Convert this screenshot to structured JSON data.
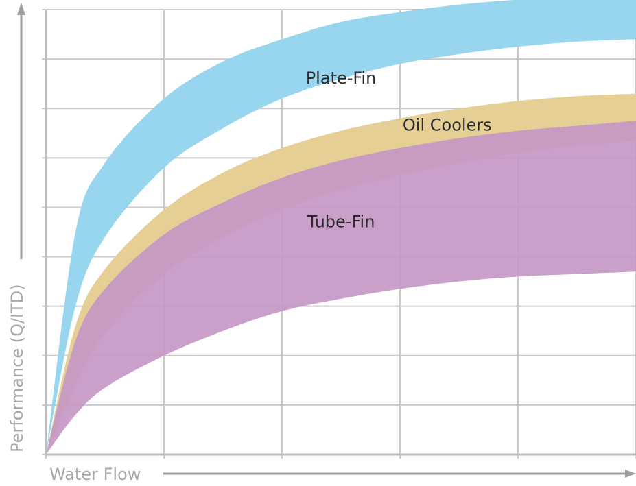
{
  "chart_data": {
    "type": "area",
    "title": "",
    "xlabel": "Water Flow",
    "ylabel": "Performance (Q/ITD)",
    "grid": true,
    "x_ticks_labeled": false,
    "y_ticks_labeled": false,
    "xlim": [
      0,
      5
    ],
    "ylim": [
      0,
      9
    ],
    "x": [
      0,
      0.25,
      0.5,
      1,
      1.5,
      2,
      2.5,
      3,
      3.5,
      4,
      4.5,
      5
    ],
    "series": [
      {
        "name": "Plate-Fin",
        "color": "#98d6ef",
        "label_position": [
          2.5,
          7.5
        ],
        "upper": [
          0,
          4.5,
          5.9,
          7.2,
          7.95,
          8.4,
          8.75,
          8.95,
          9.1,
          9.2,
          9.25,
          9.25
        ],
        "lower": [
          0,
          3.0,
          4.4,
          5.8,
          6.6,
          7.2,
          7.6,
          7.9,
          8.1,
          8.25,
          8.35,
          8.4
        ]
      },
      {
        "name": "Oil Coolers",
        "color": "#e6cf95",
        "label_position": [
          3.4,
          6.55
        ],
        "upper": [
          0,
          2.6,
          3.75,
          4.95,
          5.7,
          6.2,
          6.55,
          6.8,
          7.0,
          7.15,
          7.25,
          7.3
        ],
        "lower": [
          0,
          1.4,
          2.45,
          3.65,
          4.4,
          4.95,
          5.35,
          5.65,
          5.9,
          6.1,
          6.25,
          6.35
        ]
      },
      {
        "name": "Tube-Fin",
        "color": "#c597c4",
        "label_position": [
          2.5,
          4.6
        ],
        "upper": [
          0,
          2.3,
          3.35,
          4.45,
          5.1,
          5.6,
          5.95,
          6.2,
          6.4,
          6.55,
          6.65,
          6.75
        ],
        "lower": [
          0,
          0.8,
          1.35,
          2.0,
          2.5,
          2.9,
          3.15,
          3.35,
          3.5,
          3.6,
          3.65,
          3.7
        ]
      }
    ]
  }
}
